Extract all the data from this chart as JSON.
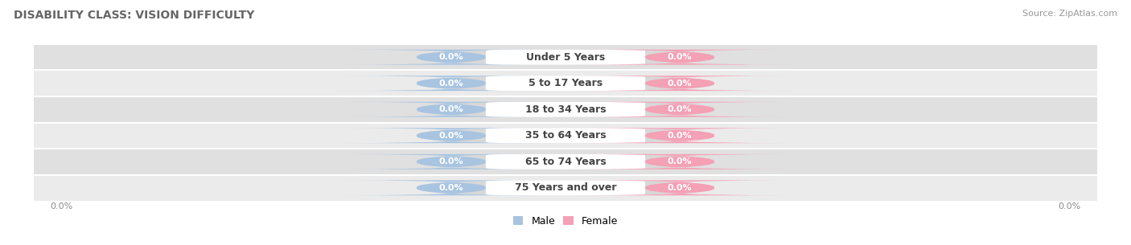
{
  "title": "DISABILITY CLASS: VISION DIFFICULTY",
  "source": "Source: ZipAtlas.com",
  "categories": [
    "Under 5 Years",
    "5 to 17 Years",
    "18 to 34 Years",
    "35 to 64 Years",
    "65 to 74 Years",
    "75 Years and over"
  ],
  "male_values": [
    0.0,
    0.0,
    0.0,
    0.0,
    0.0,
    0.0
  ],
  "female_values": [
    0.0,
    0.0,
    0.0,
    0.0,
    0.0,
    0.0
  ],
  "male_color": "#a8c4e0",
  "female_color": "#f4a0b5",
  "male_label": "Male",
  "female_label": "Female",
  "row_bg_colors": [
    "#ebebeb",
    "#e0e0e0"
  ],
  "title_color": "#666666",
  "source_color": "#999999",
  "title_fontsize": 10,
  "source_fontsize": 8,
  "cat_fontsize": 9,
  "val_fontsize": 8,
  "axis_label": "0.0%",
  "background_color": "#ffffff",
  "pill_bg_color": "#d8d8d8",
  "center_box_color": "#ffffff",
  "center_box_edge": "#e0e0e0"
}
